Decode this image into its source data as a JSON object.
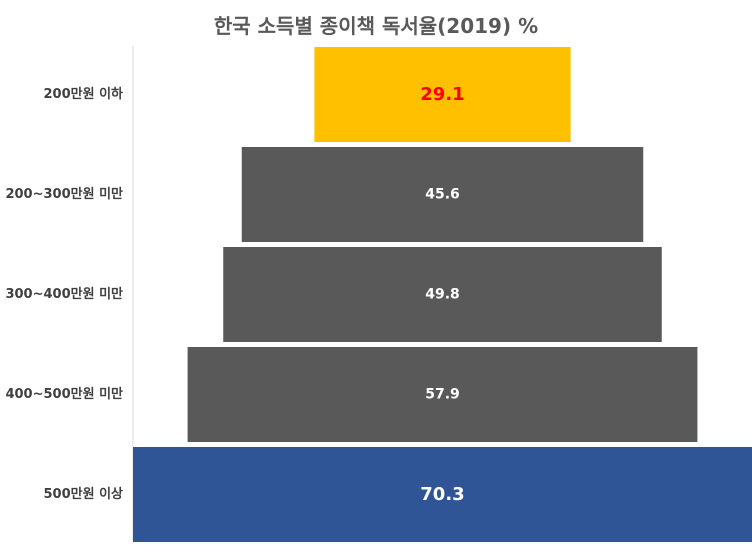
{
  "chart_data": {
    "type": "bar",
    "orientation": "horizontal-funnel",
    "title": "한국 소득별 종이책 독서율(2019) %",
    "categories": [
      "200만원 이하",
      "200~300만원 미만",
      "300~400만원 미만",
      "400~500만원 미만",
      "500만원 이상"
    ],
    "values": [
      29.1,
      45.6,
      49.8,
      57.9,
      70.3
    ],
    "value_labels": [
      "29.1",
      "45.6",
      "49.8",
      "57.9",
      "70.3"
    ],
    "bar_colors": [
      "#FFC000",
      "#595959",
      "#595959",
      "#595959",
      "#2F5597"
    ],
    "label_colors": [
      "#FF0000",
      "#FFFFFF",
      "#FFFFFF",
      "#FFFFFF",
      "#FFFFFF"
    ],
    "xlim": [
      0,
      70.3
    ],
    "grid": false,
    "legend": "none"
  }
}
